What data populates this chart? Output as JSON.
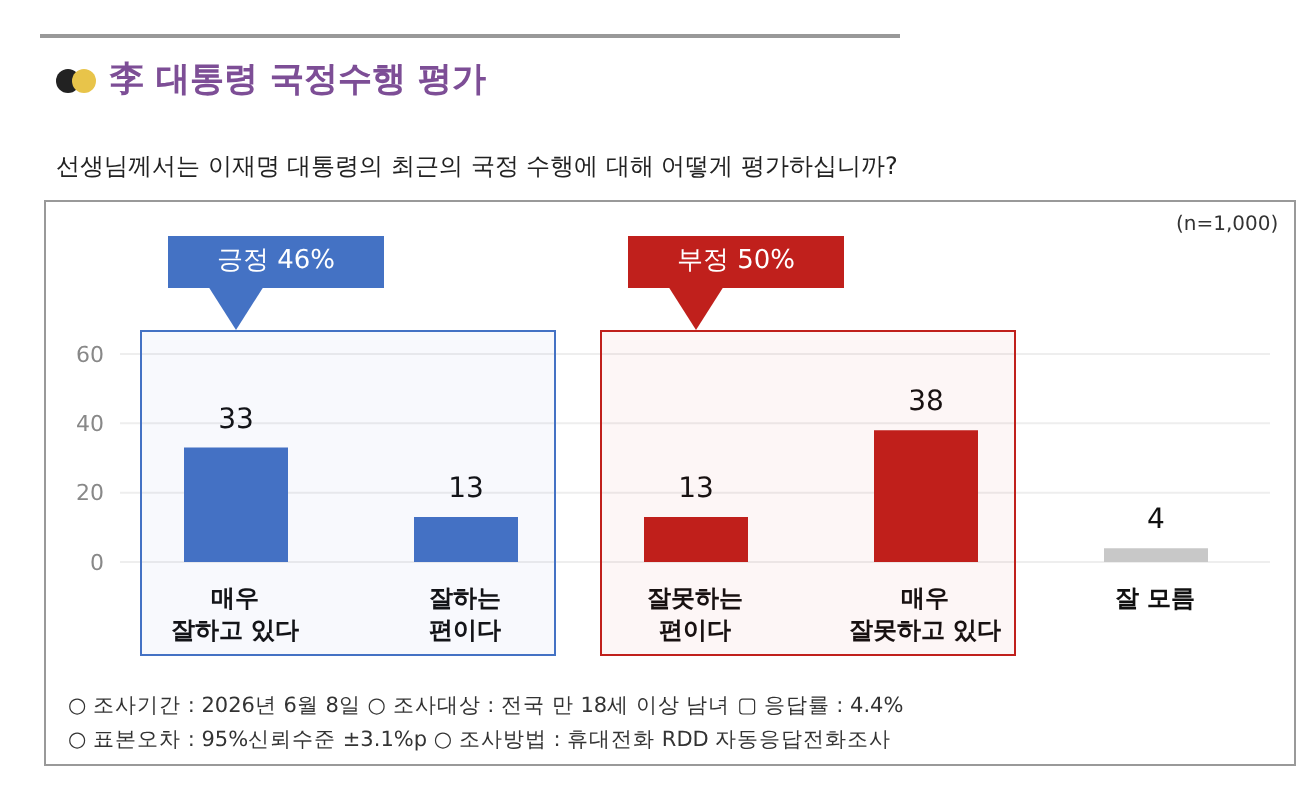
{
  "chart_data": {
    "type": "bar",
    "title": "李 대통령 국정수행 평가",
    "subtitle": "선생님께서는 이재명 대통령의 최근의 국정 수행에 대해 어떻게 평가하십니까?",
    "categories": [
      "매우 잘하고 있다",
      "잘하는 편이다",
      "잘못하는 편이다",
      "매우 잘못하고 있다",
      "잘 모름"
    ],
    "values": [
      33,
      13,
      13,
      38,
      4
    ],
    "colors": [
      "#4472c4",
      "#4472c4",
      "#c0201c",
      "#c0201c",
      "#c8c8c8"
    ],
    "ylim": [
      0,
      60
    ],
    "yticks": [
      0,
      20,
      40,
      60
    ],
    "grid": "y",
    "data_labels": true,
    "bands": [
      {
        "axis": "x",
        "from": "매우 잘하고 있다",
        "to": "잘하는 편이다",
        "label": "긍정 46%",
        "color": "#4472c4"
      },
      {
        "axis": "x",
        "from": "잘못하는 편이다",
        "to": "매우 잘못하고 있다",
        "label": "부정 50%",
        "color": "#c0201c"
      }
    ],
    "annotations": [
      "(n=1,000)",
      "○ 조사기간 : 2026년 6월 8일 ○ 조사대상 : 전국 만 18세 이상 남녀 ▢ 응답률 : 4.4%",
      "○ 표본오차 : 95%신뢰수준 ±3.1%p ○ 조사방법 : 휴대전화 RDD 자동응답전화조사"
    ]
  }
}
